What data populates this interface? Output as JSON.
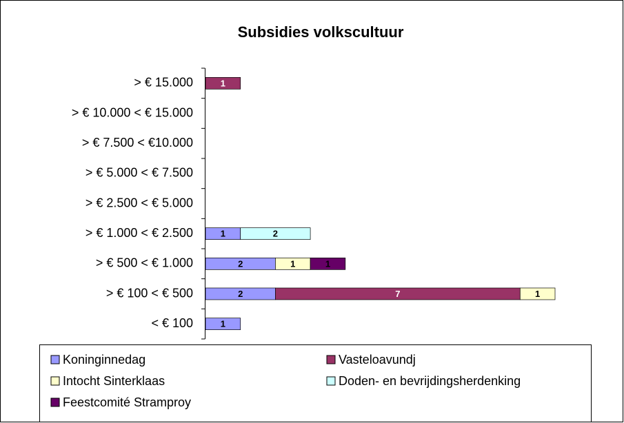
{
  "chart_data": {
    "type": "stacked-bar-horizontal",
    "title": "Subsidies volkscultuur",
    "categories": [
      "> € 15.000",
      "> € 10.000 < € 15.000",
      "> € 7.500  < €10.000",
      "> € 5.000 < € 7.500",
      "> € 2.500 < € 5.000",
      "> € 1.000 < € 2.500",
      "> € 500  < € 1.000",
      "> € 100 < € 500",
      "< € 100"
    ],
    "series": [
      {
        "name": "Koninginnedag",
        "color": "#9999ff",
        "values": [
          null,
          null,
          null,
          null,
          null,
          1,
          2,
          2,
          1
        ]
      },
      {
        "name": "Vasteloavundj",
        "color": "#993366",
        "values": [
          1,
          null,
          null,
          null,
          null,
          null,
          null,
          7,
          null
        ]
      },
      {
        "name": "Intocht Sinterklaas",
        "color": "#ffffcc",
        "values": [
          null,
          null,
          null,
          null,
          null,
          null,
          1,
          1,
          null
        ]
      },
      {
        "name": "Doden- en bevrijdingsherdenking",
        "color": "#ccffff",
        "values": [
          null,
          null,
          null,
          null,
          null,
          2,
          null,
          null,
          null
        ]
      },
      {
        "name": "Feestcomité Stramproy",
        "color": "#660066",
        "values": [
          null,
          null,
          null,
          null,
          null,
          null,
          1,
          null,
          null
        ]
      }
    ]
  }
}
